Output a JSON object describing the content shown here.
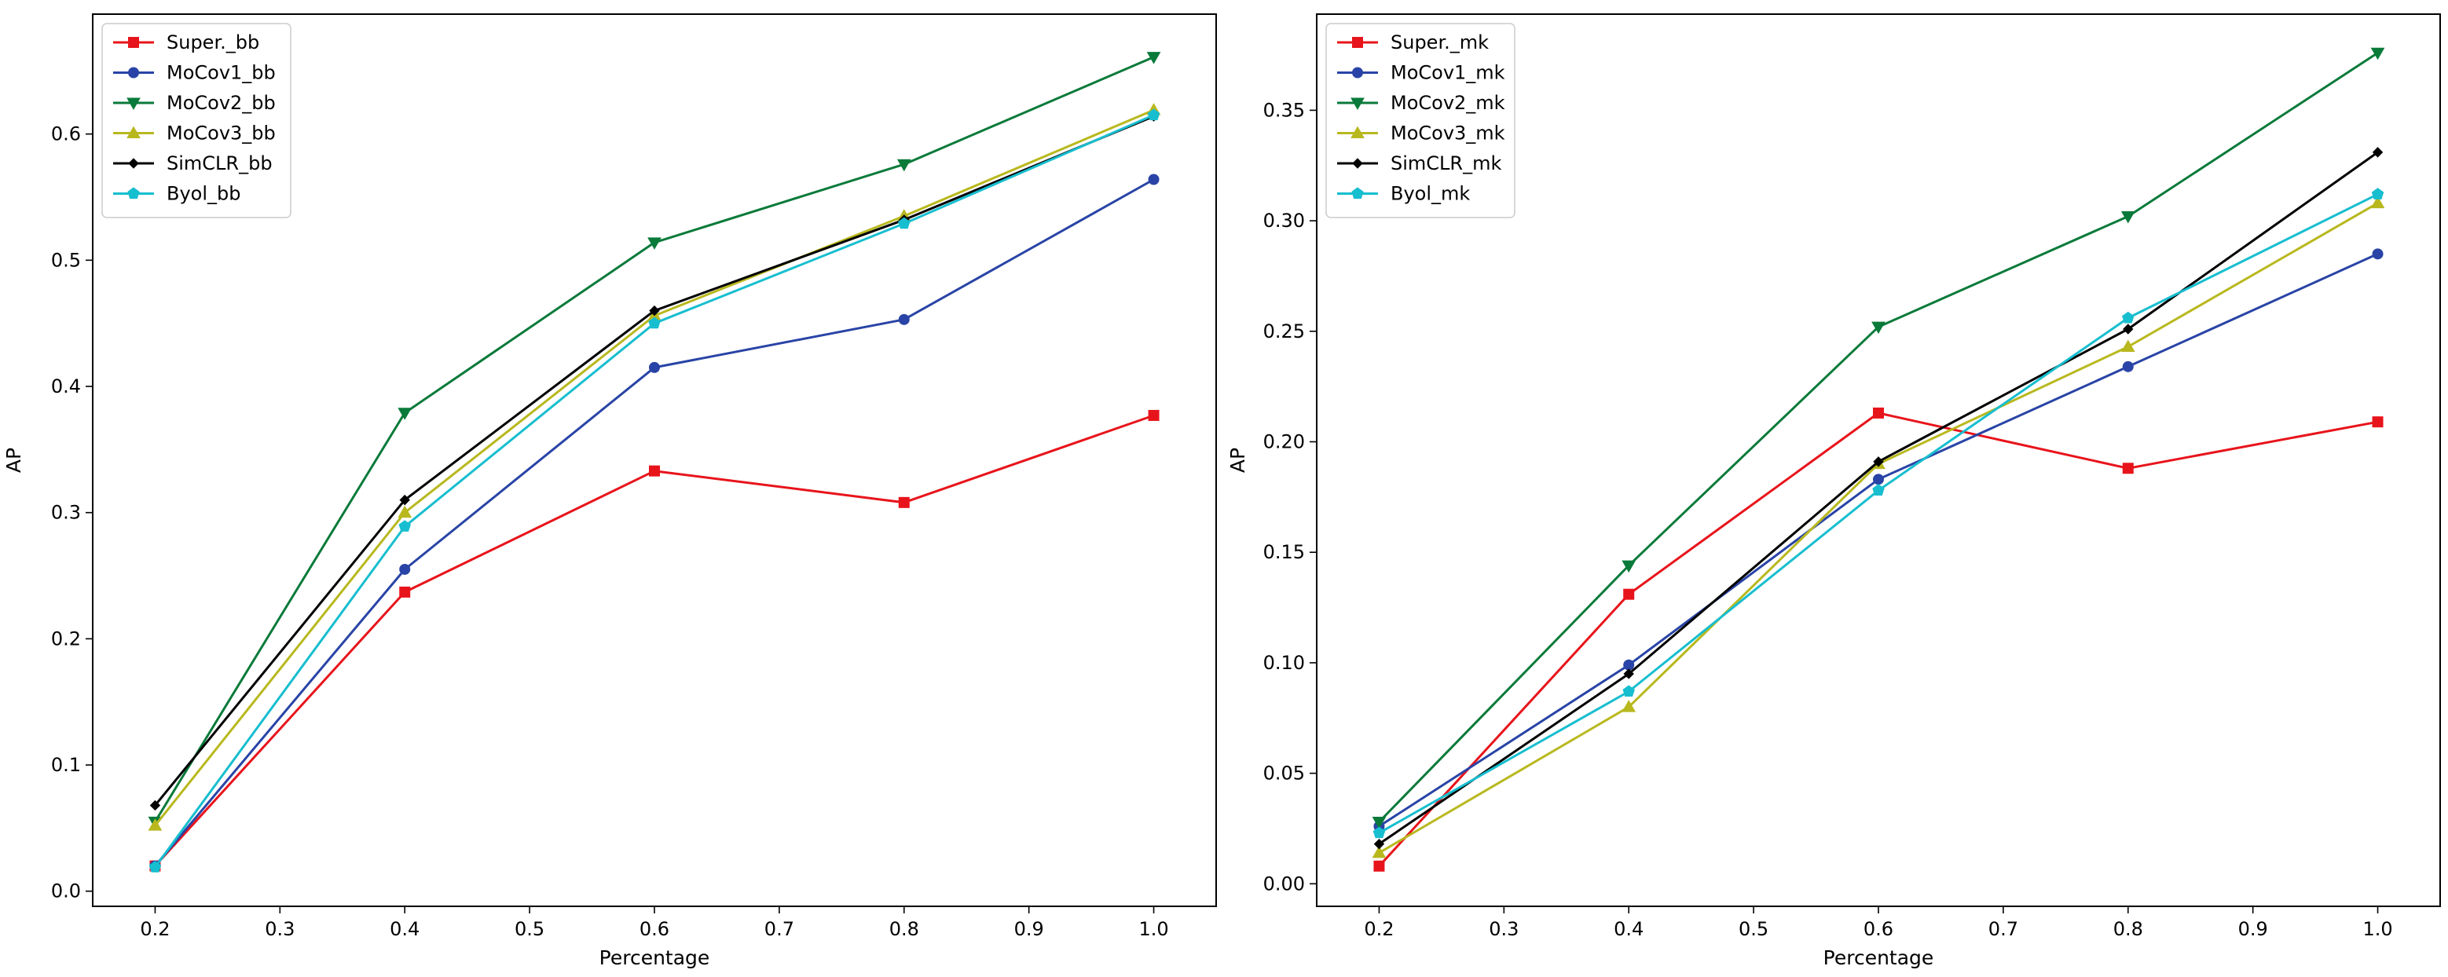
{
  "chart_data": [
    {
      "type": "line",
      "title": "",
      "xlabel": "Percentage",
      "ylabel": "AP",
      "xlim": [
        0.15,
        1.05
      ],
      "ylim": [
        -0.012,
        0.695
      ],
      "xticks": [
        0.2,
        0.3,
        0.4,
        0.5,
        0.6,
        0.7,
        0.8,
        0.9,
        1.0
      ],
      "xtick_labels": [
        "0.2",
        "0.3",
        "0.4",
        "0.5",
        "0.6",
        "0.7",
        "0.8",
        "0.9",
        "1.0"
      ],
      "yticks": [
        0.0,
        0.1,
        0.2,
        0.3,
        0.4,
        0.5,
        0.6
      ],
      "ytick_labels": [
        "0.0",
        "0.1",
        "0.2",
        "0.3",
        "0.4",
        "0.5",
        "0.6"
      ],
      "grid": false,
      "legend_position": "top-left",
      "x": [
        0.2,
        0.4,
        0.6,
        0.8,
        1.0
      ],
      "series": [
        {
          "name": "Super._bb",
          "color": "#e8141b",
          "marker": "square",
          "values": [
            0.02,
            0.237,
            0.333,
            0.308,
            0.377
          ]
        },
        {
          "name": "MoCov1_bb",
          "color": "#2944a6",
          "marker": "circle",
          "values": [
            0.02,
            0.255,
            0.415,
            0.453,
            0.564
          ]
        },
        {
          "name": "MoCov2_bb",
          "color": "#0a7a3a",
          "marker": "triangle-down",
          "values": [
            0.055,
            0.379,
            0.514,
            0.576,
            0.661
          ]
        },
        {
          "name": "MoCov3_bb",
          "color": "#b8b81e",
          "marker": "triangle-up",
          "values": [
            0.052,
            0.3,
            0.456,
            0.535,
            0.619
          ]
        },
        {
          "name": "SimCLR_bb",
          "color": "#000000",
          "marker": "diamond",
          "values": [
            0.068,
            0.31,
            0.46,
            0.532,
            0.614
          ]
        },
        {
          "name": "Byol_bb",
          "color": "#17becf",
          "marker": "pentagon",
          "values": [
            0.019,
            0.289,
            0.45,
            0.529,
            0.615
          ]
        }
      ]
    },
    {
      "type": "line",
      "title": "",
      "xlabel": "Percentage",
      "ylabel": "AP",
      "xlim": [
        0.15,
        1.05
      ],
      "ylim": [
        -0.0102,
        0.3935
      ],
      "xticks": [
        0.2,
        0.3,
        0.4,
        0.5,
        0.6,
        0.7,
        0.8,
        0.9,
        1.0
      ],
      "xtick_labels": [
        "0.2",
        "0.3",
        "0.4",
        "0.5",
        "0.6",
        "0.7",
        "0.8",
        "0.9",
        "1.0"
      ],
      "yticks": [
        0.0,
        0.05,
        0.1,
        0.15,
        0.2,
        0.25,
        0.3,
        0.35
      ],
      "ytick_labels": [
        "0.00",
        "0.05",
        "0.10",
        "0.15",
        "0.20",
        "0.25",
        "0.30",
        "0.35"
      ],
      "grid": false,
      "legend_position": "top-left",
      "x": [
        0.2,
        0.4,
        0.6,
        0.8,
        1.0
      ],
      "series": [
        {
          "name": "Super._mk",
          "color": "#e8141b",
          "marker": "square",
          "values": [
            0.008,
            0.131,
            0.213,
            0.188,
            0.209
          ]
        },
        {
          "name": "MoCov1_mk",
          "color": "#2944a6",
          "marker": "circle",
          "values": [
            0.026,
            0.099,
            0.183,
            0.234,
            0.285
          ]
        },
        {
          "name": "MoCov2_mk",
          "color": "#0a7a3a",
          "marker": "triangle-down",
          "values": [
            0.028,
            0.144,
            0.252,
            0.302,
            0.376
          ]
        },
        {
          "name": "MoCov3_mk",
          "color": "#b8b81e",
          "marker": "triangle-up",
          "values": [
            0.014,
            0.08,
            0.19,
            0.243,
            0.308
          ]
        },
        {
          "name": "SimCLR_mk",
          "color": "#000000",
          "marker": "diamond",
          "values": [
            0.018,
            0.095,
            0.191,
            0.251,
            0.331
          ]
        },
        {
          "name": "Byol_mk",
          "color": "#17becf",
          "marker": "pentagon",
          "values": [
            0.023,
            0.087,
            0.178,
            0.256,
            0.312
          ]
        }
      ]
    }
  ]
}
